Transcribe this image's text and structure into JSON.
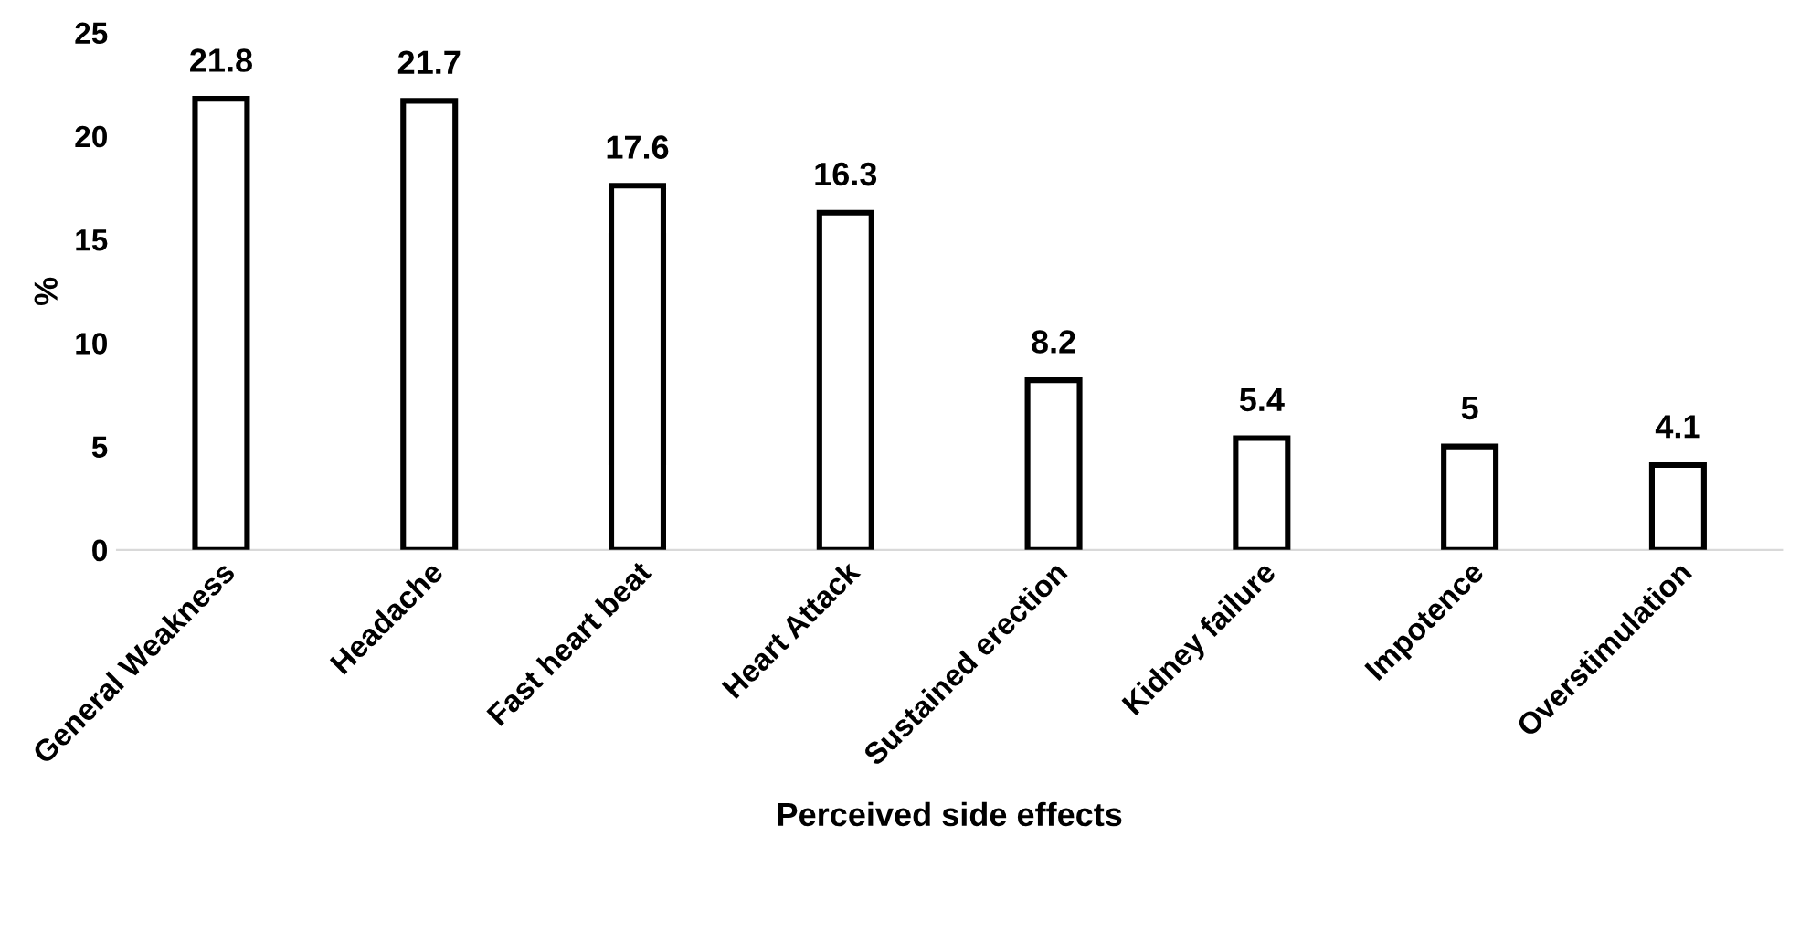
{
  "chart_data": {
    "type": "bar",
    "xlabel": "Perceived side effects",
    "ylabel": "%",
    "categories": [
      "General Weakness",
      "Headache",
      "Fast heart beat",
      "Heart Attack",
      "Sustained erection",
      "Kidney failure",
      "Impotence",
      "Overstimulation"
    ],
    "values": [
      21.8,
      21.7,
      17.6,
      16.3,
      8.2,
      5.4,
      5,
      4.1
    ],
    "color": "#ffffff",
    "ylim": [
      0,
      25
    ],
    "yticks": [
      0,
      5,
      10,
      15,
      20,
      25
    ],
    "grid": false,
    "data_labels": true
  }
}
